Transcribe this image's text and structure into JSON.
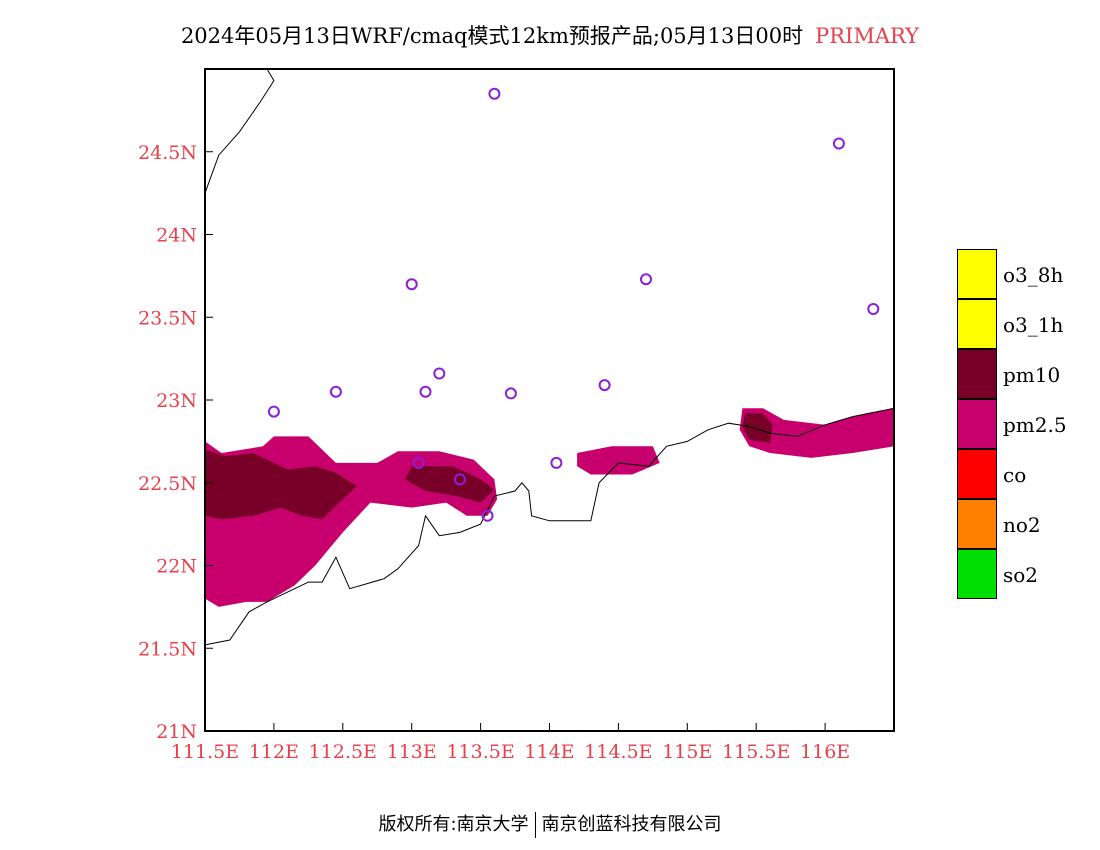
{
  "title": {
    "main": "2024年05月13日WRF/cmaq模式12km预报产品;05月13日00时",
    "highlight": "PRIMARY"
  },
  "axes": {
    "x_labels": [
      "111.5E",
      "112E",
      "112.5E",
      "113E",
      "113.5E",
      "114E",
      "114.5E",
      "115E",
      "115.5E",
      "116E"
    ],
    "y_labels": [
      "24.5N",
      "24N",
      "23.5N",
      "23N",
      "22.5N",
      "22N",
      "21.5N",
      "21N"
    ]
  },
  "legend": [
    {
      "label": "o3_8h",
      "color": "#ffff00"
    },
    {
      "label": "o3_1h",
      "color": "#ffff00"
    },
    {
      "label": "pm10",
      "color": "#780028"
    },
    {
      "label": "pm2.5",
      "color": "#c8006e"
    },
    {
      "label": "co",
      "color": "#ff0000"
    },
    {
      "label": "no2",
      "color": "#ff8000"
    },
    {
      "label": "so2",
      "color": "#00e000"
    }
  ],
  "footer": {
    "left": "版权所有:南京大学",
    "right": "南京创蓝科技有限公司"
  },
  "map_data": {
    "extent": {
      "lon": [
        111.5,
        116.5
      ],
      "lat": [
        21.0,
        25.0
      ]
    },
    "stations": [
      [
        113.6,
        24.85
      ],
      [
        116.1,
        24.55
      ],
      [
        113.0,
        23.7
      ],
      [
        114.7,
        23.73
      ],
      [
        116.35,
        23.55
      ],
      [
        112.45,
        23.05
      ],
      [
        113.2,
        23.16
      ],
      [
        113.1,
        23.05
      ],
      [
        113.72,
        23.04
      ],
      [
        114.4,
        23.09
      ],
      [
        112.0,
        22.93
      ],
      [
        113.05,
        22.62
      ],
      [
        113.35,
        22.52
      ],
      [
        114.05,
        22.62
      ],
      [
        113.55,
        22.3
      ]
    ],
    "pollution_regions": [
      {
        "pollutant": "pm2.5",
        "color": "#c8006e",
        "lonlat": [
          [
            111.5,
            22.75
          ],
          [
            111.62,
            22.68
          ],
          [
            111.92,
            22.72
          ],
          [
            112.0,
            22.78
          ],
          [
            112.25,
            22.78
          ],
          [
            112.45,
            22.62
          ],
          [
            112.75,
            22.62
          ],
          [
            112.9,
            22.69
          ],
          [
            113.2,
            22.69
          ],
          [
            113.45,
            22.64
          ],
          [
            113.6,
            22.52
          ],
          [
            113.62,
            22.4
          ],
          [
            113.55,
            22.3
          ],
          [
            113.4,
            22.3
          ],
          [
            113.25,
            22.38
          ],
          [
            113.0,
            22.35
          ],
          [
            112.7,
            22.38
          ],
          [
            112.5,
            22.2
          ],
          [
            112.3,
            22.0
          ],
          [
            112.15,
            21.88
          ],
          [
            111.95,
            21.78
          ],
          [
            111.8,
            21.78
          ],
          [
            111.6,
            21.75
          ],
          [
            111.5,
            21.8
          ]
        ]
      },
      {
        "pollutant": "pm10",
        "color": "#780028",
        "lonlat": [
          [
            111.5,
            22.7
          ],
          [
            111.65,
            22.66
          ],
          [
            111.85,
            22.68
          ],
          [
            112.1,
            22.58
          ],
          [
            112.3,
            22.6
          ],
          [
            112.45,
            22.56
          ],
          [
            112.6,
            22.48
          ],
          [
            112.5,
            22.4
          ],
          [
            112.35,
            22.28
          ],
          [
            112.2,
            22.3
          ],
          [
            112.05,
            22.35
          ],
          [
            111.85,
            22.3
          ],
          [
            111.62,
            22.28
          ],
          [
            111.5,
            22.3
          ]
        ]
      },
      {
        "pollutant": "pm10",
        "color": "#780028",
        "lonlat": [
          [
            113.0,
            22.6
          ],
          [
            113.3,
            22.6
          ],
          [
            113.5,
            22.52
          ],
          [
            113.6,
            22.46
          ],
          [
            113.5,
            22.38
          ],
          [
            113.32,
            22.42
          ],
          [
            113.1,
            22.45
          ],
          [
            112.95,
            22.52
          ]
        ]
      },
      {
        "pollutant": "pm2.5",
        "color": "#c8006e",
        "lonlat": [
          [
            114.2,
            22.68
          ],
          [
            114.45,
            22.72
          ],
          [
            114.75,
            22.72
          ],
          [
            114.8,
            22.62
          ],
          [
            114.6,
            22.55
          ],
          [
            114.3,
            22.55
          ],
          [
            114.2,
            22.6
          ]
        ]
      },
      {
        "pollutant": "pm2.5",
        "color": "#c8006e",
        "lonlat": [
          [
            115.4,
            22.95
          ],
          [
            115.55,
            22.95
          ],
          [
            115.7,
            22.88
          ],
          [
            116.0,
            22.85
          ],
          [
            116.3,
            22.92
          ],
          [
            116.5,
            22.95
          ],
          [
            116.5,
            22.72
          ],
          [
            116.2,
            22.68
          ],
          [
            115.9,
            22.65
          ],
          [
            115.6,
            22.68
          ],
          [
            115.45,
            22.72
          ],
          [
            115.38,
            22.82
          ]
        ]
      },
      {
        "pollutant": "pm10",
        "color": "#780028",
        "lonlat": [
          [
            115.42,
            22.92
          ],
          [
            115.55,
            22.92
          ],
          [
            115.62,
            22.85
          ],
          [
            115.6,
            22.74
          ],
          [
            115.45,
            22.76
          ],
          [
            115.4,
            22.84
          ]
        ]
      }
    ],
    "coastline": [
      [
        111.5,
        21.52
      ],
      [
        111.68,
        21.55
      ],
      [
        111.82,
        21.72
      ],
      [
        111.95,
        21.78
      ],
      [
        112.05,
        21.82
      ],
      [
        112.25,
        21.9
      ],
      [
        112.35,
        21.9
      ],
      [
        112.45,
        22.05
      ],
      [
        112.55,
        21.86
      ],
      [
        112.8,
        21.92
      ],
      [
        112.9,
        21.98
      ],
      [
        113.05,
        22.12
      ],
      [
        113.1,
        22.3
      ],
      [
        113.2,
        22.18
      ],
      [
        113.35,
        22.2
      ],
      [
        113.5,
        22.25
      ],
      [
        113.6,
        22.42
      ],
      [
        113.75,
        22.45
      ],
      [
        113.8,
        22.5
      ],
      [
        113.85,
        22.45
      ],
      [
        113.87,
        22.3
      ],
      [
        114.0,
        22.27
      ],
      [
        114.3,
        22.27
      ],
      [
        114.36,
        22.5
      ],
      [
        114.5,
        22.62
      ],
      [
        114.72,
        22.6
      ],
      [
        114.85,
        22.72
      ],
      [
        115.0,
        22.75
      ],
      [
        115.15,
        22.82
      ],
      [
        115.3,
        22.86
      ],
      [
        115.45,
        22.84
      ],
      [
        115.6,
        22.8
      ],
      [
        115.8,
        22.78
      ],
      [
        116.0,
        22.85
      ],
      [
        116.2,
        22.9
      ],
      [
        116.5,
        22.95
      ]
    ],
    "province_line": [
      [
        111.5,
        24.25
      ],
      [
        111.6,
        24.48
      ],
      [
        111.75,
        24.62
      ],
      [
        111.9,
        24.8
      ],
      [
        112.0,
        24.93
      ],
      [
        111.95,
        25.0
      ]
    ]
  }
}
